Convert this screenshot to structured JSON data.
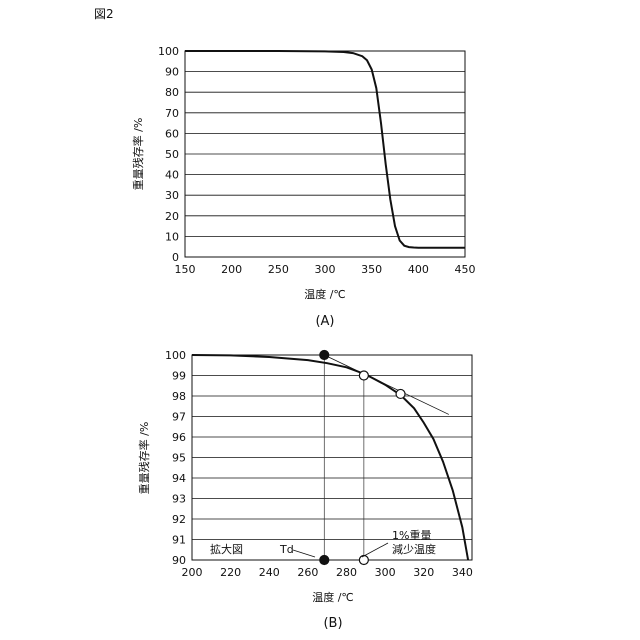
{
  "figure_label": "図2",
  "chart_data": [
    {
      "type": "line",
      "caption": "(A)",
      "xlabel": "温度 /℃",
      "ylabel": "重量残存率 /%",
      "xlim": [
        150,
        450
      ],
      "ylim": [
        0,
        100
      ],
      "xticks": [
        150,
        200,
        250,
        300,
        350,
        400,
        450
      ],
      "yticks": [
        0,
        10,
        20,
        30,
        40,
        50,
        60,
        70,
        80,
        90,
        100
      ],
      "grid": "horizontal",
      "series": [
        {
          "x": [
            150,
            200,
            250,
            300,
            320,
            330,
            340,
            345,
            350,
            355,
            360,
            365,
            370,
            375,
            380,
            385,
            390,
            395,
            400,
            410,
            420,
            450
          ],
          "y": [
            100,
            100,
            100,
            99.8,
            99.5,
            99,
            97.5,
            95.5,
            91,
            82,
            65,
            45,
            28,
            15,
            8,
            5.5,
            4.8,
            4.6,
            4.5,
            4.5,
            4.5,
            4.5
          ]
        }
      ]
    },
    {
      "type": "line",
      "caption": "(B)",
      "xlabel": "温度 /℃",
      "ylabel": "重量残存率 /%",
      "xlim": [
        200,
        345
      ],
      "ylim": [
        90,
        100
      ],
      "xticks": [
        200,
        220,
        240,
        260,
        280,
        300,
        320,
        340
      ],
      "yticks": [
        90,
        91,
        92,
        93,
        94,
        95,
        96,
        97,
        98,
        99,
        100
      ],
      "grid": "horizontal",
      "series": [
        {
          "x": [
            200,
            220,
            240,
            260,
            270,
            280,
            290,
            300,
            308,
            315,
            320,
            325,
            330,
            335,
            340,
            343
          ],
          "y": [
            100,
            99.98,
            99.9,
            99.75,
            99.6,
            99.4,
            99.05,
            98.55,
            98.05,
            97.4,
            96.7,
            95.9,
            94.8,
            93.4,
            91.6,
            90
          ]
        }
      ],
      "tangent": {
        "x": [
          268.5,
          333
        ],
        "y": [
          100,
          97.1
        ]
      },
      "markers": [
        {
          "x": 268.5,
          "y": 100,
          "fill": "filled"
        },
        {
          "x": 289,
          "y": 99,
          "fill": "open"
        },
        {
          "x": 308,
          "y": 98.1,
          "fill": "open"
        },
        {
          "x": 268.5,
          "y": 90,
          "fill": "filled"
        },
        {
          "x": 289,
          "y": 90,
          "fill": "open"
        }
      ],
      "annotations": {
        "zoom": "拡大図",
        "td": "Td",
        "loss_line1": "1%重量",
        "loss_line2": "減少温度"
      }
    }
  ]
}
